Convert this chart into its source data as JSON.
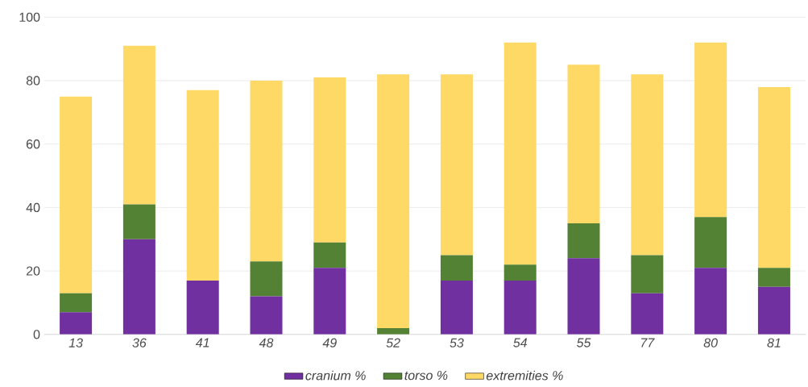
{
  "chart_data": {
    "type": "bar",
    "stacked": true,
    "categories": [
      "13",
      "36",
      "41",
      "48",
      "49",
      "52",
      "53",
      "54",
      "55",
      "77",
      "80",
      "81"
    ],
    "series": [
      {
        "name": "cranium %",
        "color": "#7030a0",
        "values": [
          7,
          30,
          17,
          12,
          21,
          0,
          17,
          17,
          24,
          13,
          21,
          15
        ]
      },
      {
        "name": "torso %",
        "color": "#548235",
        "values": [
          6,
          11,
          0,
          11,
          8,
          2,
          8,
          5,
          11,
          12,
          16,
          6
        ]
      },
      {
        "name": "extremities %",
        "color": "#ffd966",
        "values": [
          62,
          50,
          60,
          57,
          52,
          80,
          57,
          70,
          50,
          57,
          55,
          57
        ]
      }
    ],
    "ylim": [
      0,
      100
    ],
    "yticks": [
      0,
      20,
      40,
      60,
      80,
      100
    ],
    "grid": "y",
    "legend": "bottom"
  }
}
